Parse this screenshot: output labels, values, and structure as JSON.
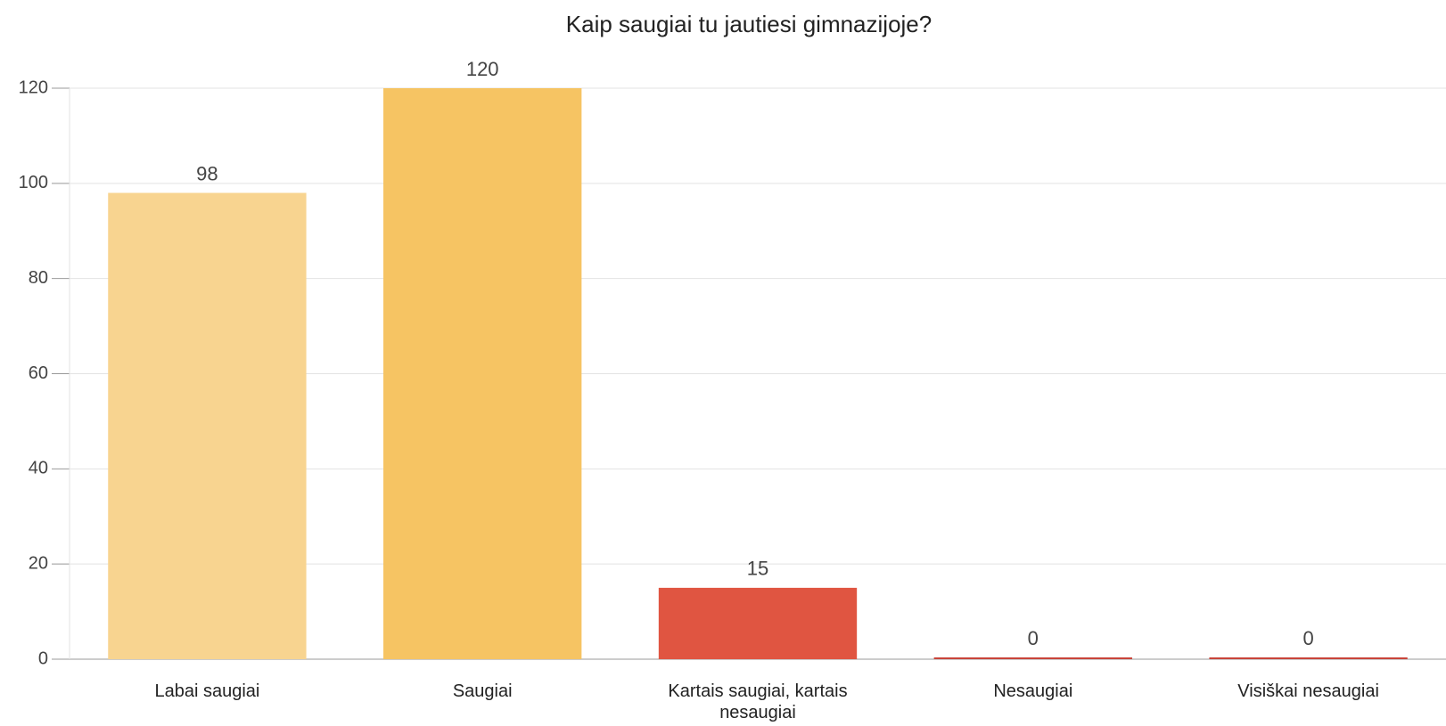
{
  "chart_data": {
    "type": "bar",
    "title": "Kaip saugiai tu jautiesi gimnazijoje?",
    "categories": [
      "Labai saugiai",
      "Saugiai",
      "Kartais saugiai, kartais nesaugiai",
      "Nesaugiai",
      "Visiškai nesaugiai"
    ],
    "values": [
      98,
      120,
      15,
      0,
      0
    ],
    "colors": [
      "#f8d490",
      "#f6c463",
      "#e05541",
      "#c9443a",
      "#c9443a"
    ],
    "ylim": [
      0,
      120
    ],
    "yticks": [
      0,
      20,
      40,
      60,
      80,
      100,
      120
    ],
    "grid": true
  }
}
